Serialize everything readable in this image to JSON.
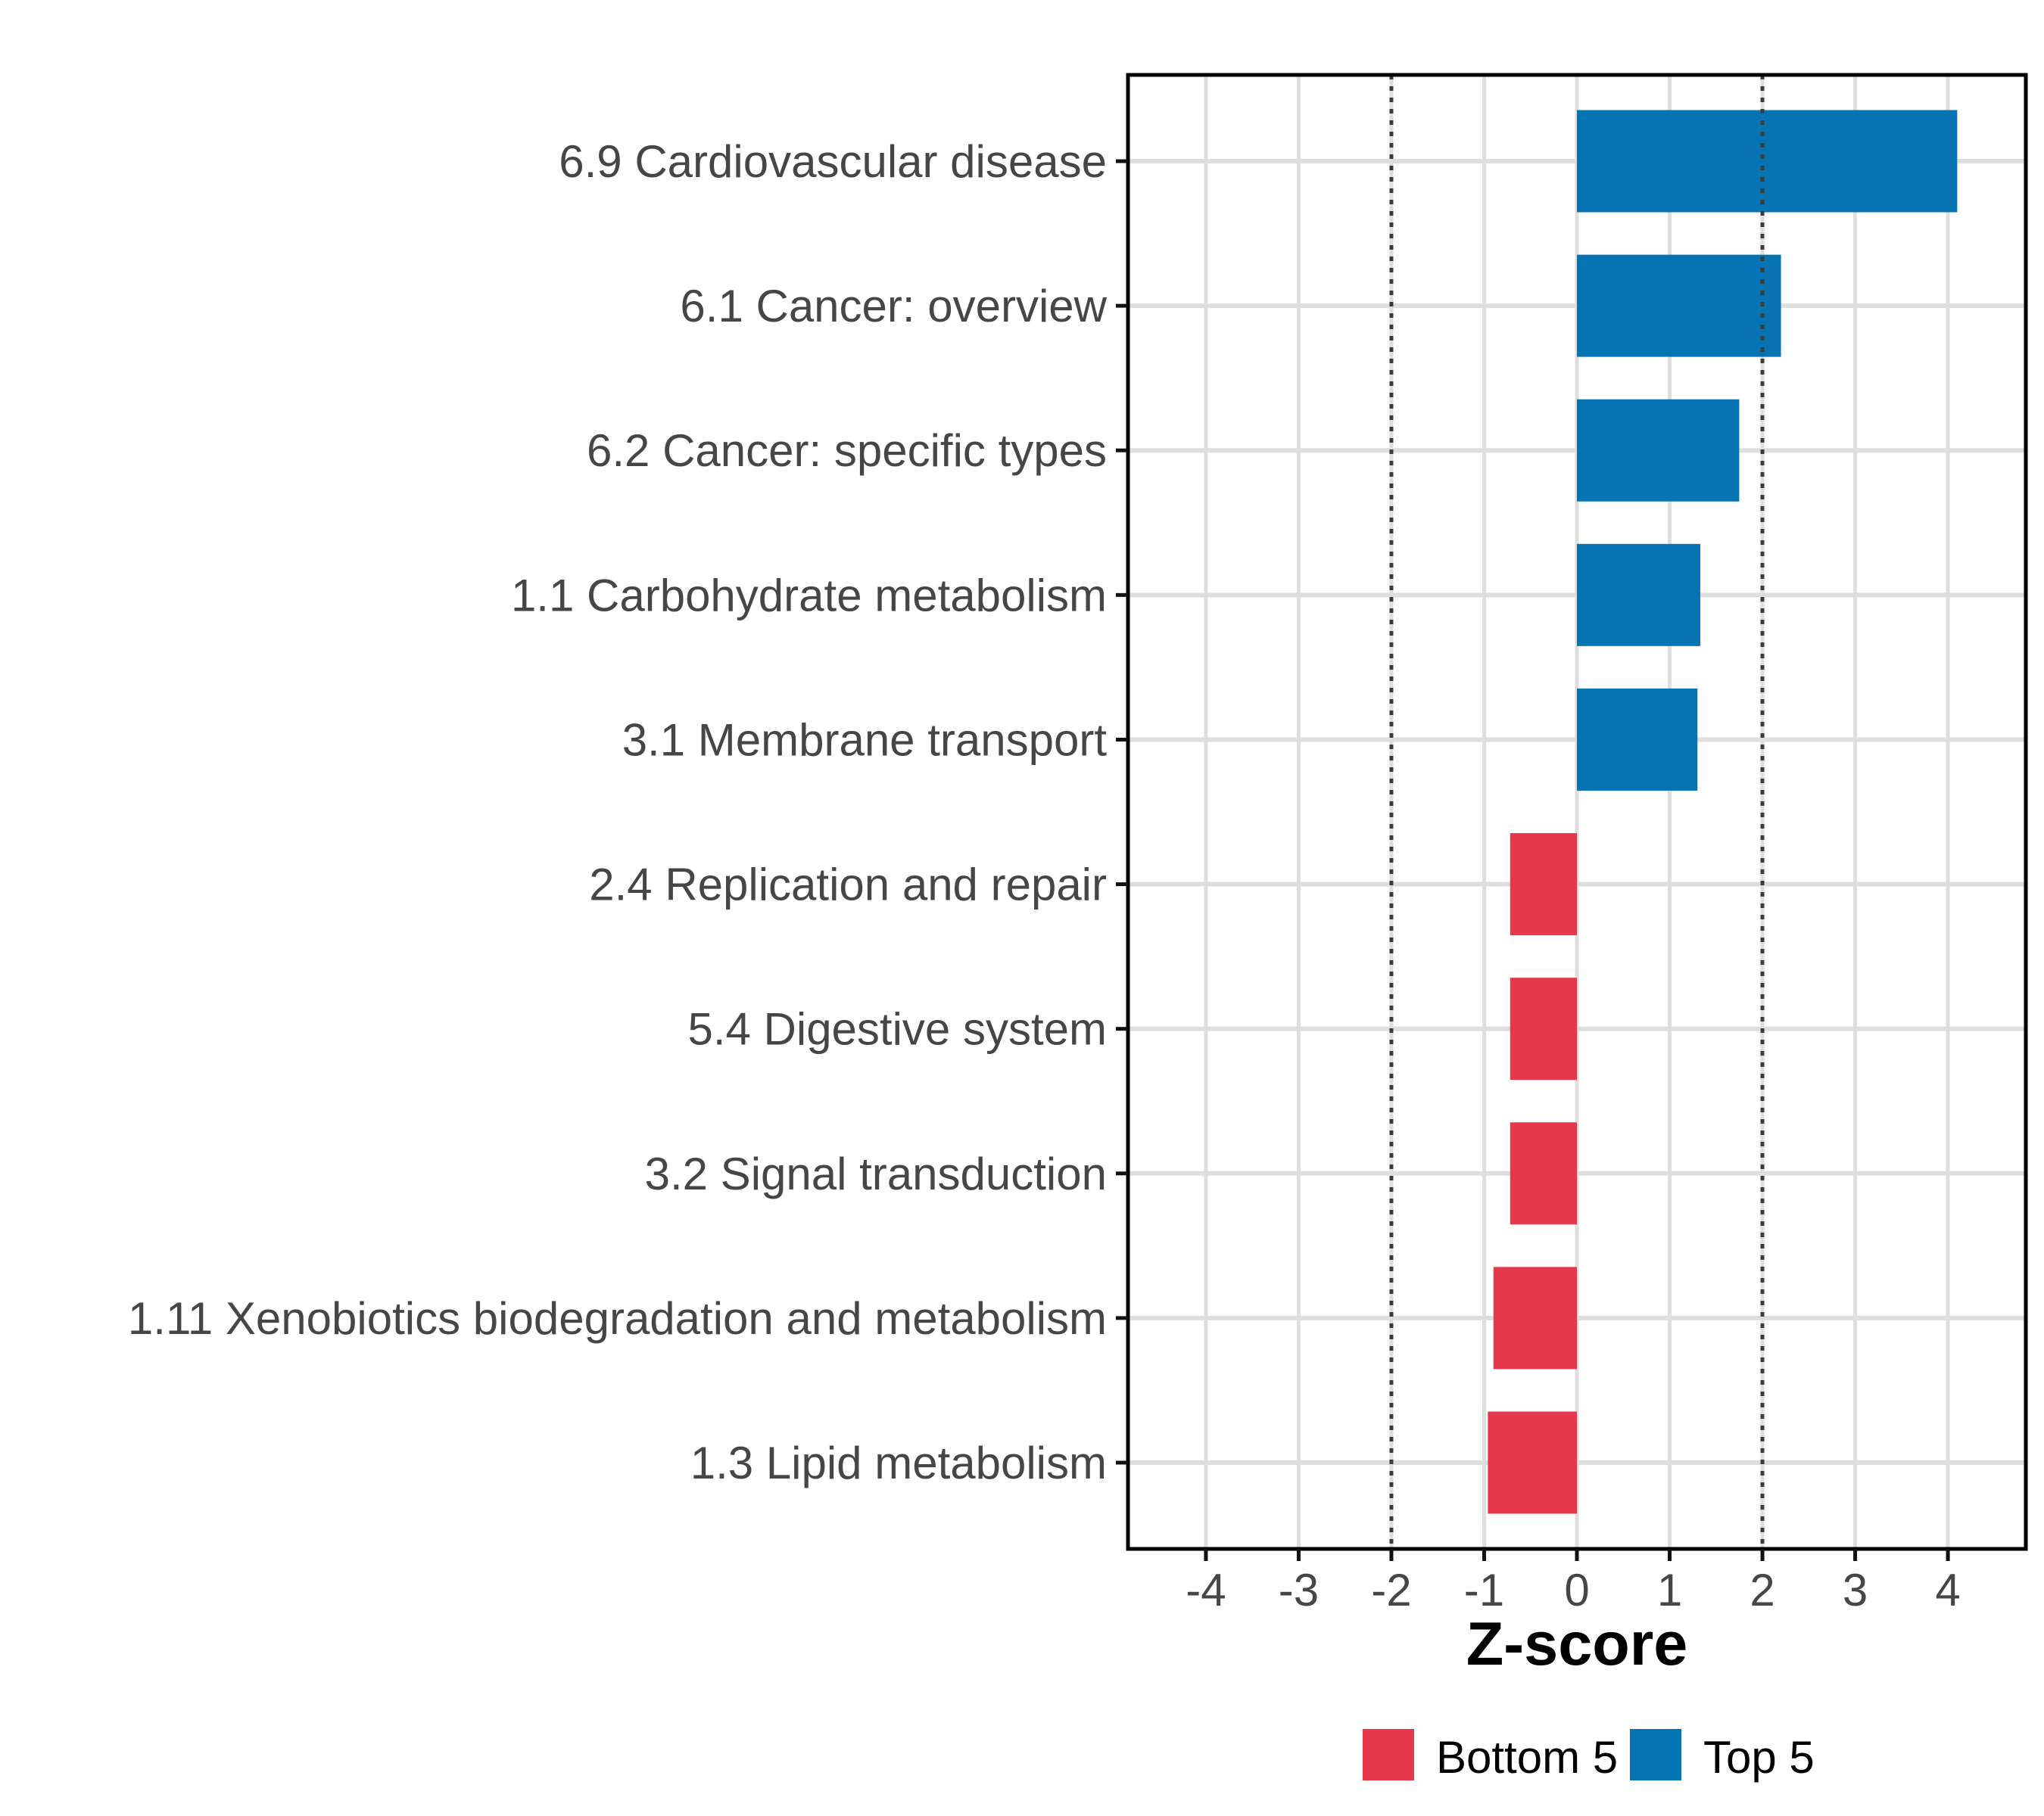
{
  "chart_data": {
    "type": "bar",
    "orientation": "horizontal",
    "title": "",
    "xlabel": "Z-score",
    "ylabel": "",
    "x_ticks": [
      -4,
      -3,
      -2,
      -1,
      0,
      1,
      2,
      3,
      4
    ],
    "xlim": [
      -4.84,
      4.84
    ],
    "reference_lines": [
      -2,
      2
    ],
    "grid": "major-vertical-and-category-lines",
    "legend_position": "bottom-center",
    "categories": [
      "6.9 Cardiovascular disease",
      "6.1 Cancer: overview",
      "6.2 Cancer: specific types",
      "1.1 Carbohydrate metabolism",
      "3.1 Membrane transport",
      "2.4 Replication and repair",
      "5.4 Digestive system",
      "3.2 Signal transduction",
      "1.11 Xenobiotics biodegradation and metabolism",
      "1.3 Lipid metabolism"
    ],
    "values": [
      4.1,
      2.2,
      1.75,
      1.33,
      1.3,
      -0.72,
      -0.72,
      -0.72,
      -0.9,
      -0.96
    ],
    "groups": [
      "Top 5",
      "Top 5",
      "Top 5",
      "Top 5",
      "Top 5",
      "Bottom 5",
      "Bottom 5",
      "Bottom 5",
      "Bottom 5",
      "Bottom 5"
    ],
    "colors": {
      "Top 5": "#0673B2",
      "Bottom 5": "#E5394B"
    },
    "legend": [
      {
        "label": "Bottom 5",
        "color": "#E5394B"
      },
      {
        "label": "Top 5",
        "color": "#0673B2"
      }
    ],
    "style_colors": {
      "gridline": "#DEDEDE",
      "reference_line": "#3B3B3B",
      "panel_border": "#000000",
      "tick": "#111111",
      "axis_text": "#464646"
    }
  }
}
